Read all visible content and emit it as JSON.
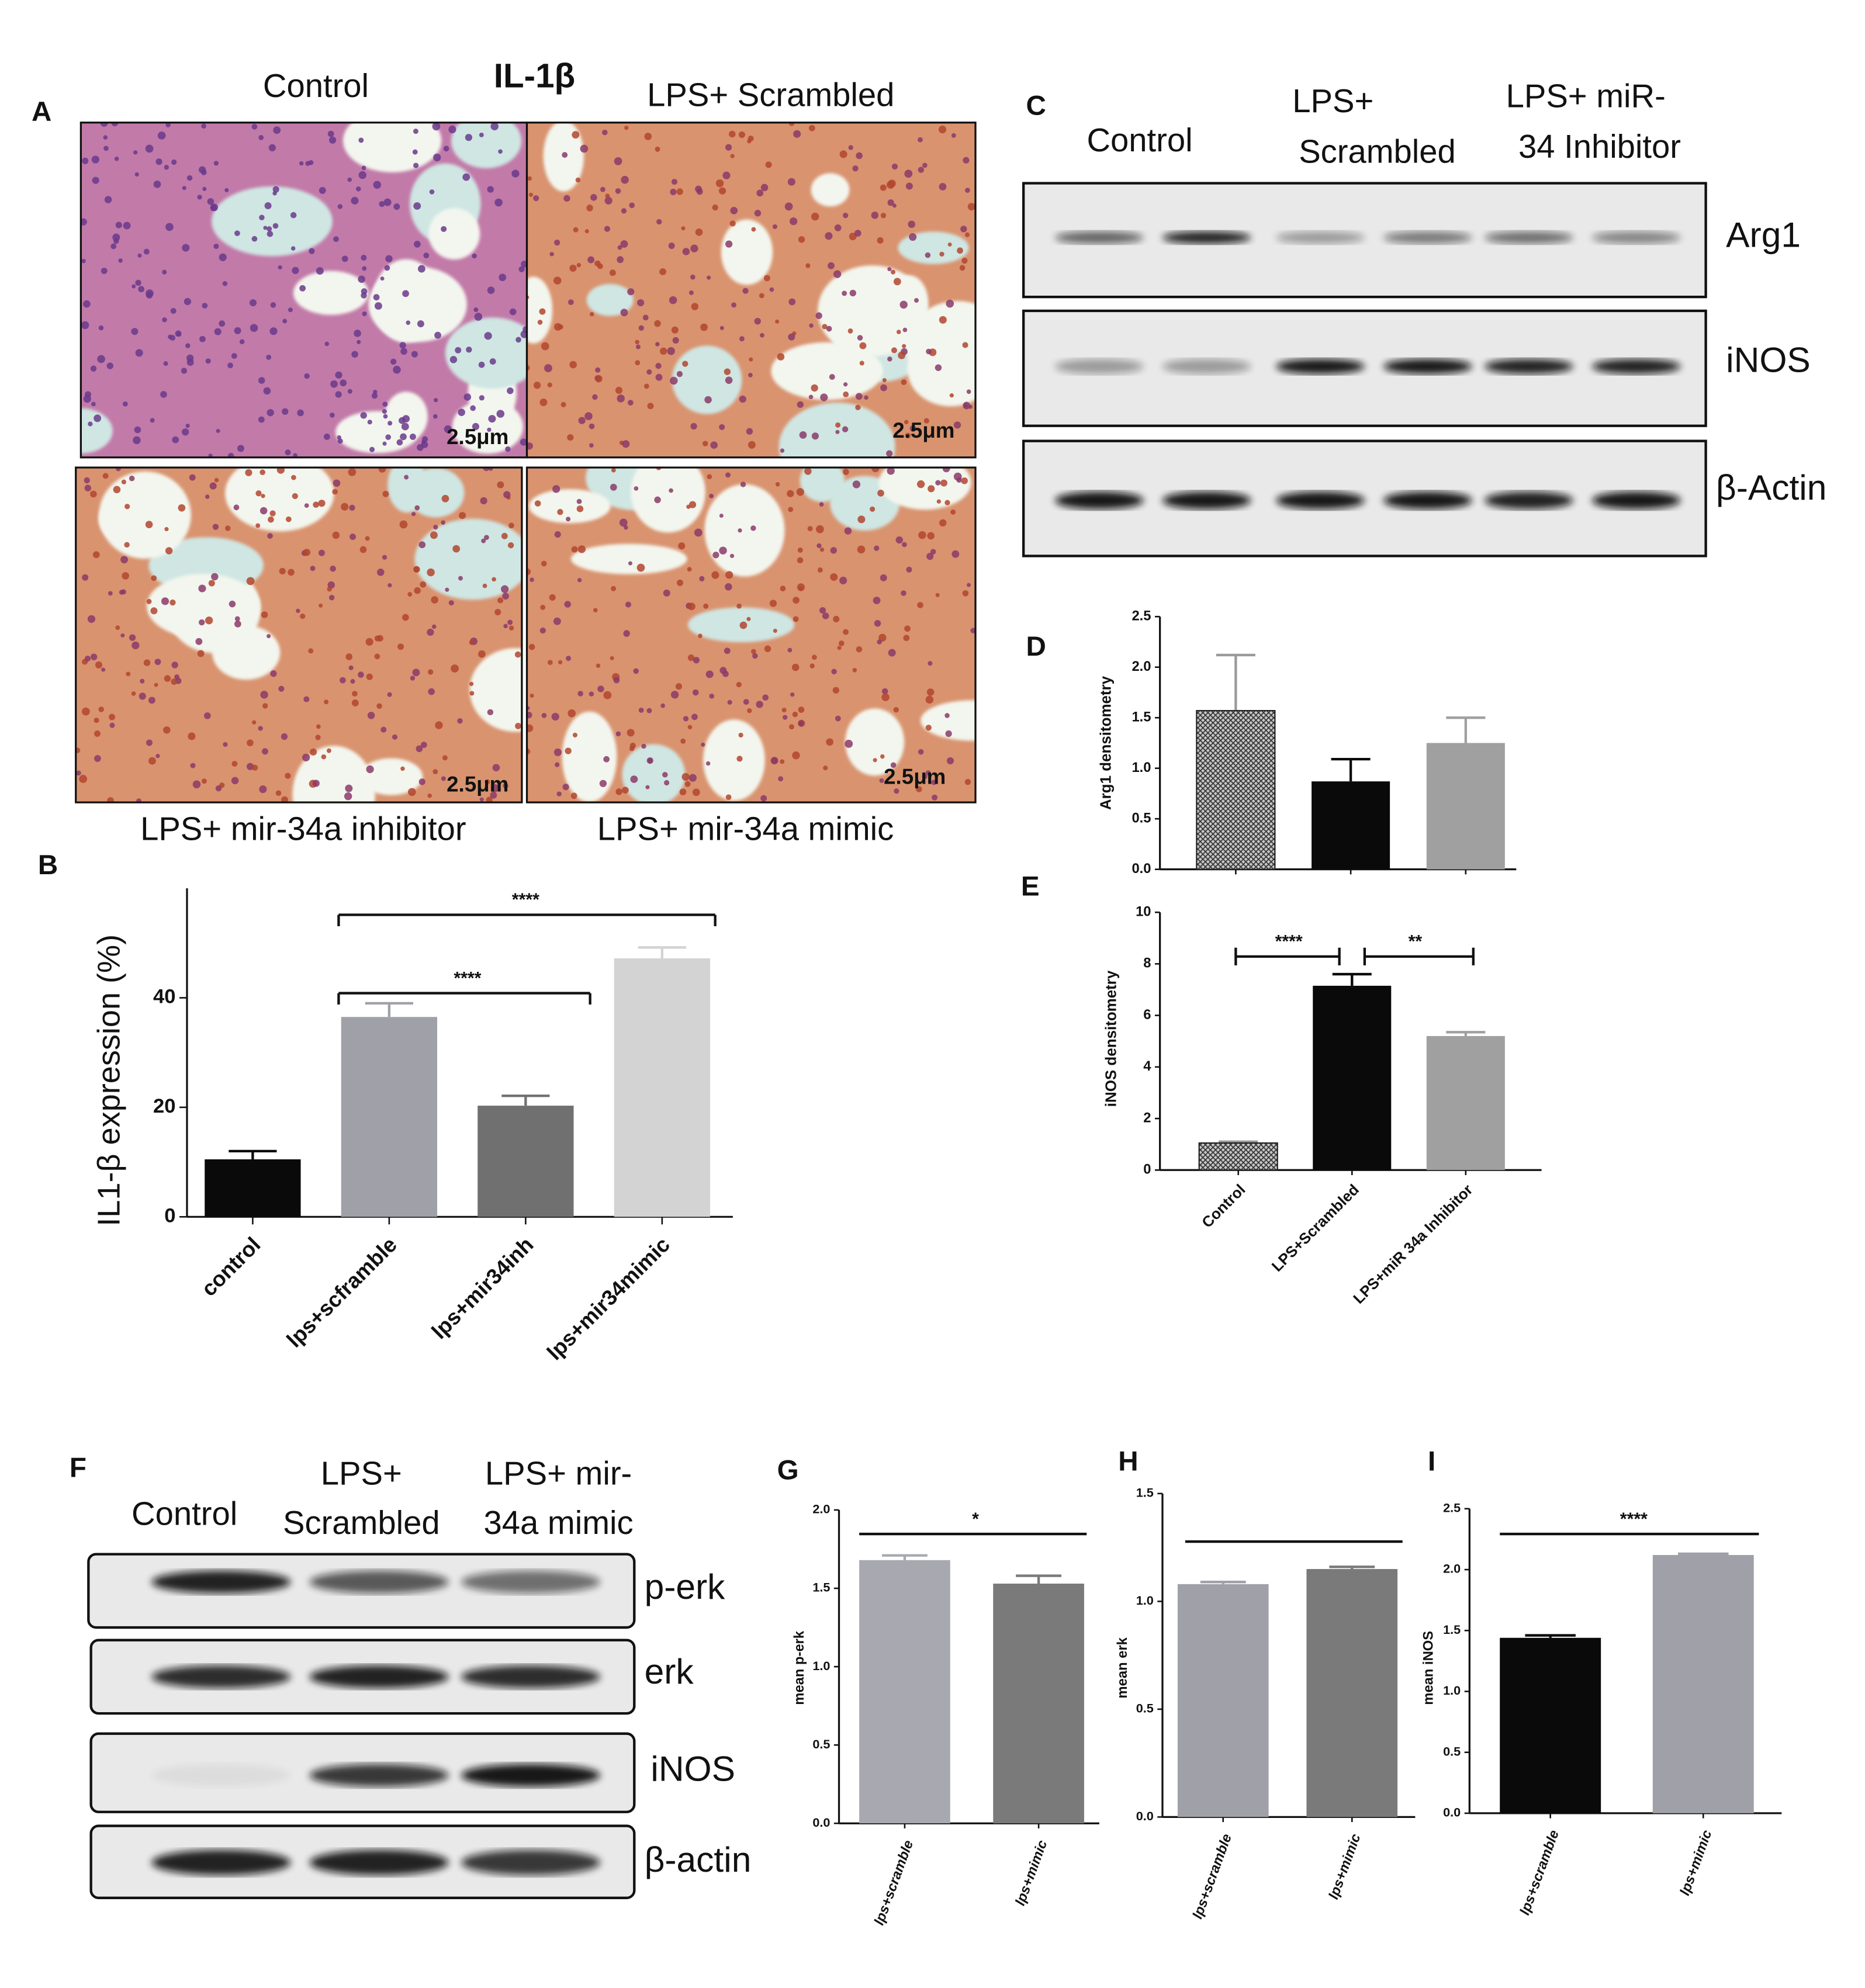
{
  "panel_letters": [
    "A",
    "B",
    "C",
    "D",
    "E",
    "F",
    "G",
    "H",
    "I"
  ],
  "histology": {
    "title": "IL-1β",
    "labels": [
      "Control",
      "LPS+ Scrambled",
      "LPS+ mir-34a inhibitor",
      "LPS+ mir-34a mimic"
    ],
    "scale_bars": [
      "2.5μm",
      "2.5μm",
      "2.5μm",
      "2.5μm"
    ]
  },
  "blot_c": {
    "lanes": [
      [
        "Control"
      ],
      [
        "LPS+",
        "Scrambled"
      ],
      [
        "LPS+ miR-",
        "34 Inhibitor"
      ]
    ],
    "rows": [
      "Arg1",
      "iNOS",
      "β-Actin"
    ]
  },
  "blot_f": {
    "lanes": [
      [
        "Control"
      ],
      [
        "LPS+",
        "Scrambled"
      ],
      [
        "LPS+ mir-",
        "34a mimic"
      ]
    ],
    "rows": [
      "p-erk",
      "erk",
      "iNOS",
      "β-actin"
    ]
  },
  "chart_data": [
    {
      "type": "bar",
      "ylabel": "IL1-β expression (%)",
      "categories": [
        "control",
        "lps+scframble",
        "lps+mir34inh",
        "lps+mir34mimic"
      ],
      "values": [
        10.5,
        36.5,
        20.3,
        47.2
      ],
      "errors": [
        1.5,
        2.5,
        1.8,
        2.0
      ],
      "colors": [
        "#0a0a0a",
        "#a0a0a8",
        "#707070",
        "#d3d3d3"
      ],
      "ylim": [
        0,
        60
      ],
      "yticks": [
        0,
        20,
        40
      ],
      "annotations": [
        "****",
        "****"
      ]
    },
    {
      "type": "bar",
      "ylabel": "Arg1 densitometry",
      "categories": [
        null,
        null,
        null
      ],
      "values": [
        1.57,
        0.87,
        1.25
      ],
      "errors": [
        0.55,
        0.22,
        0.25
      ],
      "colors": [
        "#9a9a9a",
        "#0a0a0a",
        "#a0a0a0"
      ],
      "ylim": [
        0,
        2.5
      ],
      "yticks": [
        {
          "value": 0,
          "label": "0.0"
        },
        0.5,
        {
          "value": 1,
          "label": "1.0"
        },
        1.5,
        {
          "value": 2,
          "label": "2.0"
        },
        2.5
      ],
      "annotations": []
    },
    {
      "type": "bar",
      "ylabel": "iNOS densitometry",
      "categories": [
        "Control",
        "LPS+Scrambled",
        "LPS+miR 34a Inhibitor"
      ],
      "values": [
        1.05,
        7.15,
        5.2
      ],
      "errors": [
        0.05,
        0.45,
        0.15
      ],
      "colors": [
        "#9a9a9a",
        "#0a0a0a",
        "#a0a0a0"
      ],
      "ylim": [
        0,
        10
      ],
      "yticks": [
        0,
        2,
        4,
        6,
        8,
        10
      ],
      "annotations": [
        "****",
        "**"
      ]
    },
    {
      "type": "bar",
      "ylabel": "mean p-erk",
      "categories": [
        "lps+scramble",
        "lps+mimic"
      ],
      "values": [
        1.68,
        1.53
      ],
      "errors": [
        0.03,
        0.05
      ],
      "colors": [
        "#a8a8b0",
        "#7a7a7a"
      ],
      "ylim": [
        0,
        2
      ],
      "yticks": [
        {
          "value": 0,
          "label": "0.0"
        },
        0.5,
        {
          "value": 1,
          "label": "1.0"
        },
        1.5,
        {
          "value": 2,
          "label": "2.0"
        }
      ],
      "annotations": [
        "*"
      ]
    },
    {
      "type": "bar",
      "ylabel": "mean erk",
      "categories": [
        "lps+scramble",
        "lps+mimic"
      ],
      "values": [
        1.08,
        1.15
      ],
      "errors": [
        0.01,
        0.01
      ],
      "colors": [
        "#a0a0a8",
        "#7a7a7a"
      ],
      "ylim": [
        0,
        1.5
      ],
      "yticks": [
        {
          "value": 0,
          "label": "0.0"
        },
        0.5,
        {
          "value": 1,
          "label": "1.0"
        },
        1.5
      ],
      "annotations": []
    },
    {
      "type": "bar",
      "ylabel": "mean iNOS",
      "categories": [
        "lps+scramble",
        "lps+mimic"
      ],
      "values": [
        1.44,
        2.12
      ],
      "errors": [
        0.02,
        0.01
      ],
      "colors": [
        "#0a0a0a",
        "#a0a0a8"
      ],
      "ylim": [
        0,
        2.5
      ],
      "yticks": [
        {
          "value": 0,
          "label": "0.0"
        },
        0.5,
        {
          "value": 1,
          "label": "1.0"
        },
        1.5,
        {
          "value": 2,
          "label": "2.0"
        },
        2.5
      ],
      "annotations": [
        "****"
      ]
    }
  ]
}
